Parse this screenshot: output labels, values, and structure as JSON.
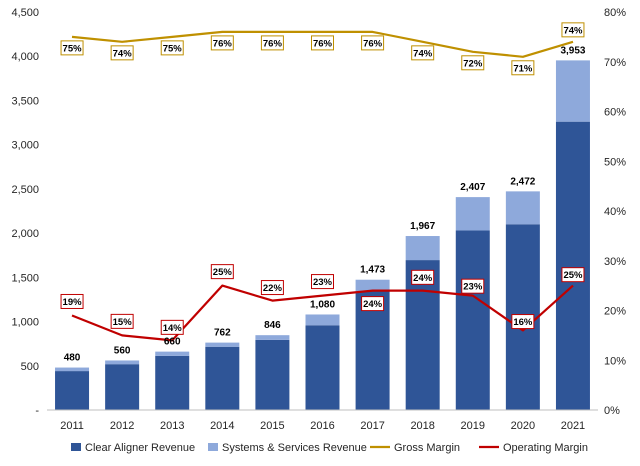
{
  "chart_data": {
    "type": "bar",
    "stacked": true,
    "categories": [
      "2011",
      "2012",
      "2013",
      "2014",
      "2015",
      "2016",
      "2017",
      "2018",
      "2019",
      "2020",
      "2021"
    ],
    "series": [
      {
        "name": "Clear Aligner Revenue",
        "axis": "left",
        "kind": "bar",
        "values": [
          440,
          518,
          612,
          715,
          793,
          958,
          1340,
          1695,
          2030,
          2100,
          3260
        ]
      },
      {
        "name": "Systems & Services Revenue",
        "axis": "left",
        "kind": "bar",
        "values": [
          40,
          42,
          48,
          47,
          53,
          122,
          133,
          272,
          377,
          372,
          693
        ]
      },
      {
        "name": "Gross Margin",
        "axis": "right",
        "kind": "line",
        "values": [
          75,
          74,
          75,
          76,
          76,
          76,
          76,
          74,
          72,
          71,
          74
        ],
        "labels": [
          "75%",
          "74%",
          "75%",
          "76%",
          "76%",
          "76%",
          "76%",
          "74%",
          "72%",
          "71%",
          "74%"
        ]
      },
      {
        "name": "Operating Margin",
        "axis": "right",
        "kind": "line",
        "values": [
          19,
          15,
          14,
          25,
          22,
          23,
          24,
          24,
          23,
          16,
          25
        ],
        "labels": [
          "19%",
          "15%",
          "14%",
          "25%",
          "22%",
          "23%",
          "24%",
          "24%",
          "23%",
          "16%",
          "25%"
        ]
      }
    ],
    "totals": [
      480,
      560,
      660,
      762,
      846,
      1080,
      1473,
      1967,
      2407,
      2472,
      3953
    ],
    "total_labels": [
      "480",
      "560",
      "660",
      "762",
      "846",
      "1,080",
      "1,473",
      "1,967",
      "2,407",
      "2,472",
      "3,953"
    ],
    "y_left": {
      "ylim": [
        0,
        4500
      ],
      "ticks": [
        0,
        500,
        1000,
        1500,
        2000,
        2500,
        3000,
        3500,
        4000,
        4500
      ],
      "tick_labels": [
        "-",
        "500",
        "1,000",
        "1,500",
        "2,000",
        "2,500",
        "3,000",
        "3,500",
        "4,000",
        "4,500"
      ]
    },
    "y_right": {
      "ylim": [
        0,
        80
      ],
      "ticks": [
        0,
        10,
        20,
        30,
        40,
        50,
        60,
        70,
        80
      ],
      "tick_labels": [
        "0%",
        "10%",
        "20%",
        "30%",
        "40%",
        "50%",
        "60%",
        "70%",
        "80%"
      ]
    },
    "legend_position": "bottom",
    "grid": false,
    "colors": {
      "clear_aligner": "#2F5597",
      "systems_services": "#8EA9DB",
      "gross_margin": "#BF9000",
      "operating_margin": "#C00000"
    }
  }
}
